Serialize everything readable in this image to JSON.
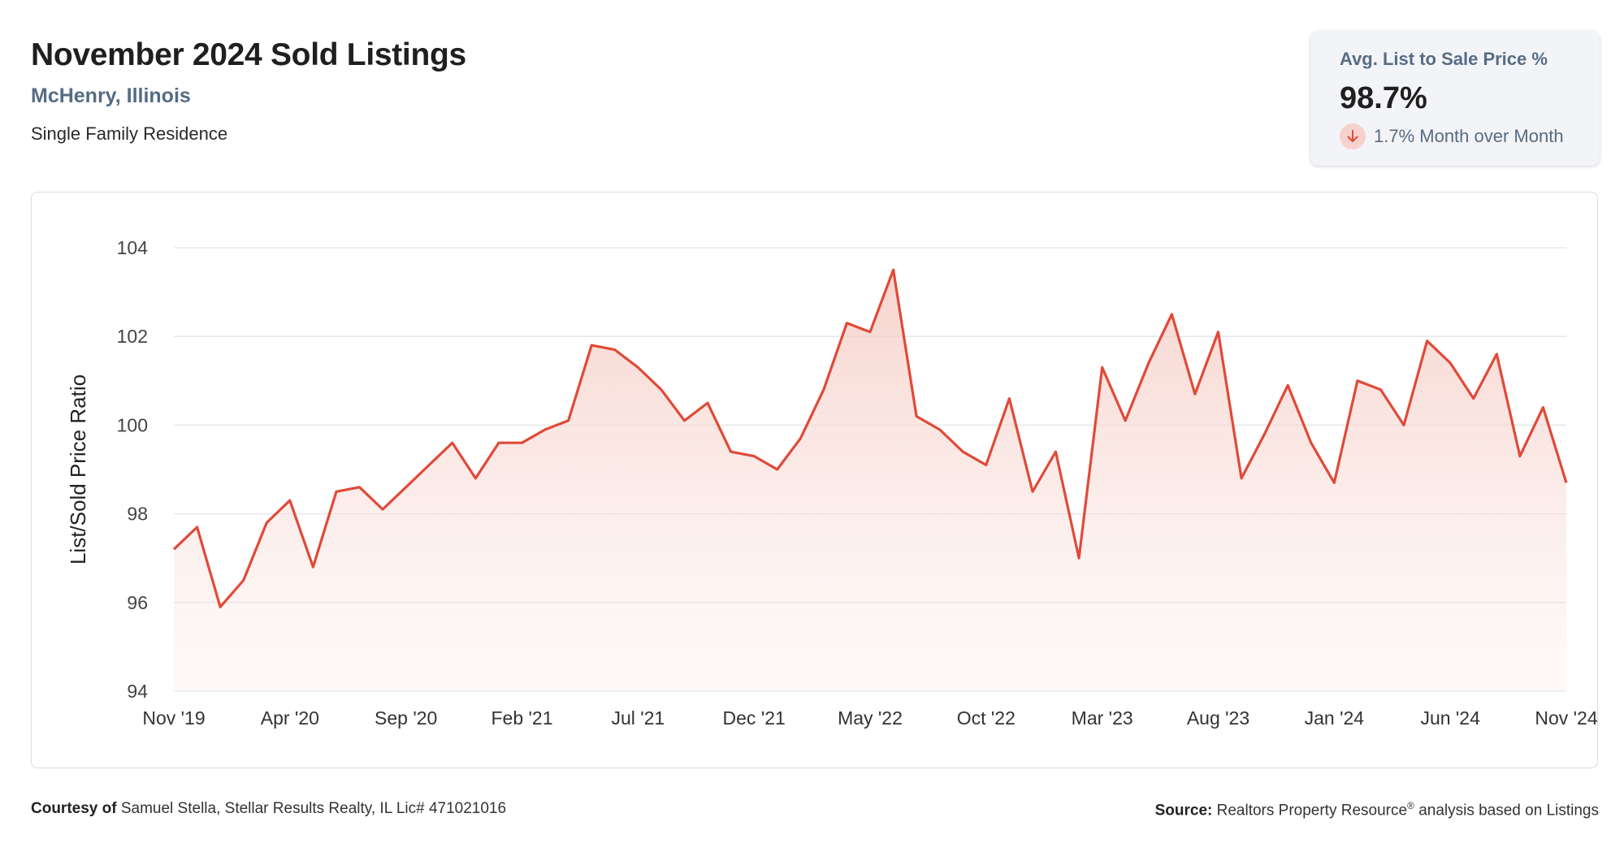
{
  "header": {
    "title": "November 2024 Sold Listings",
    "location": "McHenry, Illinois",
    "property_type": "Single Family Residence"
  },
  "kpi": {
    "label": "Avg. List to Sale Price %",
    "value": "98.7%",
    "change": "1.7% Month over Month",
    "direction": "down",
    "icon": "arrow-down-icon"
  },
  "footer": {
    "courtesy_label": "Courtesy of",
    "courtesy_text": "Samuel Stella, Stellar Results Realty, IL Lic# 471021016",
    "source_label": "Source:",
    "source_name": "Realtors Property Resource",
    "source_mark": "®",
    "source_suffix": "analysis based on Listings"
  },
  "colors": {
    "line": "#e04a38",
    "fill": "#f8d9d3",
    "grid": "#e3e5e8",
    "location_text": "#566c84"
  },
  "chart_data": {
    "type": "area",
    "title": "",
    "xlabel": "",
    "ylabel": "List/Sold Price Ratio",
    "ylim": [
      94,
      104
    ],
    "yticks": [
      94,
      96,
      98,
      100,
      102,
      104
    ],
    "grid": true,
    "x_tick_labels": [
      "Nov '19",
      "Apr '20",
      "Sep '20",
      "Feb '21",
      "Jul '21",
      "Dec '21",
      "May '22",
      "Oct '22",
      "Mar '23",
      "Aug '23",
      "Jan '24",
      "Jun '24",
      "Nov '24"
    ],
    "x": [
      "2019-11",
      "2019-12",
      "2020-01",
      "2020-02",
      "2020-03",
      "2020-04",
      "2020-05",
      "2020-06",
      "2020-07",
      "2020-08",
      "2020-09",
      "2020-10",
      "2020-11",
      "2020-12",
      "2021-01",
      "2021-02",
      "2021-03",
      "2021-04",
      "2021-05",
      "2021-06",
      "2021-07",
      "2021-08",
      "2021-09",
      "2021-10",
      "2021-11",
      "2021-12",
      "2022-01",
      "2022-02",
      "2022-03",
      "2022-04",
      "2022-05",
      "2022-06",
      "2022-07",
      "2022-08",
      "2022-09",
      "2022-10",
      "2022-11",
      "2022-12",
      "2023-01",
      "2023-02",
      "2023-03",
      "2023-04",
      "2023-05",
      "2023-06",
      "2023-07",
      "2023-08",
      "2023-09",
      "2023-10",
      "2023-11",
      "2023-12",
      "2024-01",
      "2024-02",
      "2024-03",
      "2024-04",
      "2024-05",
      "2024-06",
      "2024-07",
      "2024-08",
      "2024-09",
      "2024-10",
      "2024-11"
    ],
    "series": [
      {
        "values": [
          97.2,
          97.7,
          95.9,
          96.5,
          97.8,
          98.3,
          96.8,
          98.5,
          98.6,
          98.1,
          98.6,
          99.1,
          99.6,
          98.8,
          99.6,
          99.6,
          99.9,
          100.1,
          101.8,
          101.7,
          101.3,
          100.8,
          100.1,
          100.5,
          99.4,
          99.3,
          99.0,
          99.7,
          100.8,
          102.3,
          102.1,
          103.5,
          100.2,
          99.9,
          99.4,
          99.1,
          100.6,
          98.5,
          99.4,
          97.0,
          101.3,
          100.1,
          101.4,
          102.5,
          100.7,
          102.1,
          98.8,
          99.8,
          100.9,
          99.6,
          98.7,
          101.0,
          100.8,
          100.0,
          101.9,
          101.4,
          100.6,
          101.6,
          99.3,
          100.4,
          98.7
        ]
      }
    ]
  }
}
